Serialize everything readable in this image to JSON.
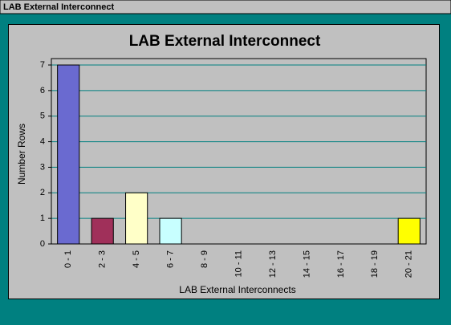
{
  "window": {
    "title": "LAB External Interconnect"
  },
  "chart_data": {
    "type": "bar",
    "title": "LAB External Interconnect",
    "x_label": "LAB External Interconnects",
    "y_label": "Number Rows",
    "categories": [
      "0 - 1",
      "2 - 3",
      "4 - 5",
      "6 - 7",
      "8 - 9",
      "10 - 11",
      "12 - 13",
      "14 - 15",
      "16 - 17",
      "18 - 19",
      "20 - 21"
    ],
    "values": [
      7,
      1,
      2,
      1,
      0,
      0,
      0,
      0,
      0,
      0,
      1
    ],
    "colors": [
      "#6a6ad0",
      "#a0305a",
      "#ffffc8",
      "#c8ffff",
      null,
      null,
      null,
      null,
      null,
      null,
      "#ffff00"
    ],
    "ylim": [
      0,
      7
    ],
    "yticks": [
      0,
      1,
      2,
      3,
      4,
      5,
      6,
      7
    ],
    "grid": true,
    "grid_color": "#007f7f"
  }
}
